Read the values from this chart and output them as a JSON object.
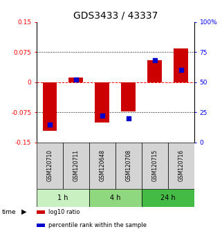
{
  "title": "GDS3433 / 43337",
  "samples": [
    "GSM120710",
    "GSM120711",
    "GSM120648",
    "GSM120708",
    "GSM120715",
    "GSM120716"
  ],
  "log10_ratio": [
    -0.122,
    0.012,
    -0.1,
    -0.072,
    0.055,
    0.085
  ],
  "percentile_rank": [
    15,
    52,
    22,
    20,
    68,
    60
  ],
  "time_groups": [
    {
      "label": "1 h",
      "start": 0,
      "end": 2,
      "color": "#c8f0c0"
    },
    {
      "label": "4 h",
      "start": 2,
      "end": 4,
      "color": "#90d880"
    },
    {
      "label": "24 h",
      "start": 4,
      "end": 6,
      "color": "#44bb44"
    }
  ],
  "bar_color": "#cc0000",
  "dot_color": "#0000cc",
  "ylim": [
    -0.15,
    0.15
  ],
  "yticks_left": [
    -0.15,
    -0.075,
    0,
    0.075,
    0.15
  ],
  "ytick_labels_left": [
    "-0.15",
    "-0.075",
    "0",
    "0.075",
    "0.15"
  ],
  "yticks_right": [
    0,
    25,
    50,
    75,
    100
  ],
  "ytick_labels_right": [
    "0",
    "25",
    "50",
    "75",
    "100%"
  ],
  "hline_y": [
    0.075,
    0,
    -0.075
  ],
  "hline_styles": [
    "dotted",
    "dashed",
    "dotted"
  ],
  "hline_colors": [
    "black",
    "red",
    "black"
  ],
  "legend_items": [
    {
      "color": "#cc0000",
      "label": "log10 ratio"
    },
    {
      "color": "#0000cc",
      "label": "percentile rank within the sample"
    }
  ],
  "title_fontsize": 10,
  "tick_fontsize": 6.5,
  "label_fontsize": 5.5,
  "time_fontsize": 7,
  "legend_fontsize": 6,
  "bar_width": 0.55,
  "dot_size": 18,
  "sample_box_color": "#d4d4d4"
}
